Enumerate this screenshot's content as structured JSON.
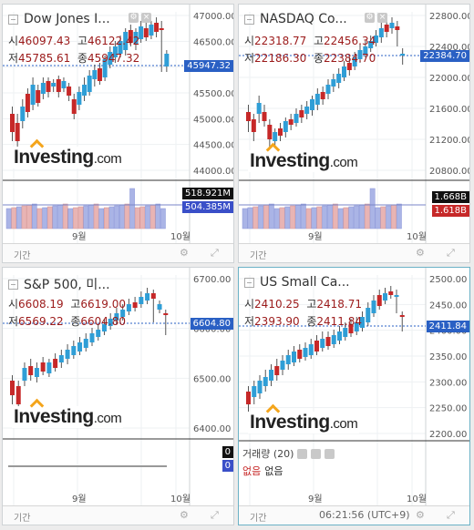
{
  "colors": {
    "up": "#2f9ed6",
    "down": "#c62828",
    "price_tag": "#2a60c4",
    "footer_text": "#888888"
  },
  "panels": [
    {
      "id": "dow",
      "title": "Dow Jones I...",
      "ohlc": {
        "open_label": "시",
        "open": "46097.43",
        "high_label": "고",
        "high": "46122.42",
        "low_label": "저",
        "low": "45785.61",
        "close_label": "종",
        "close": "45947.32"
      },
      "price_tag": "45947.32",
      "y_ticks": [
        "47000.00",
        "46500.00",
        "46000.00",
        "45500.00",
        "45000.00",
        "44500.00",
        "44000.00"
      ],
      "volume": {
        "up_value": "518.921M",
        "down_value": "504.385M"
      },
      "x_labels": [
        "9월",
        "10월"
      ],
      "footer": {
        "period_label": "기간"
      }
    },
    {
      "id": "nasdaq",
      "title": "NASDAQ Co...",
      "ohlc": {
        "open_label": "시",
        "open": "22318.77",
        "high_label": "고",
        "high": "22456.34",
        "low_label": "저",
        "low": "22186.30",
        "close_label": "종",
        "close": "22384.70"
      },
      "price_tag": "22384.70",
      "y_ticks": [
        "22800.00",
        "22400.00",
        "22000.00",
        "21600.00",
        "21200.00",
        "20800.00"
      ],
      "volume": {
        "up_value": "1.668B",
        "down_value": "1.618B"
      },
      "x_labels": [
        "9월",
        "10월"
      ],
      "footer": {
        "period_label": "기간"
      }
    },
    {
      "id": "sp500",
      "title": "S&P 500, 미...",
      "ohlc": {
        "open_label": "시",
        "open": "6608.19",
        "high_label": "고",
        "high": "6619.00",
        "low_label": "저",
        "low": "6569.22",
        "close_label": "종",
        "close": "6604.80"
      },
      "price_tag": "6604.80",
      "y_ticks": [
        "6700.00",
        "6600.00",
        "6500.00",
        "6400.00"
      ],
      "volume": {
        "up_value": "0",
        "down_value": "0"
      },
      "x_labels": [
        "9월",
        "10월"
      ],
      "footer": {
        "period_label": "기간"
      }
    },
    {
      "id": "russell",
      "title": "US Small Ca...",
      "ohlc": {
        "open_label": "시",
        "open": "2410.25",
        "high_label": "고",
        "high": "2418.71",
        "low_label": "저",
        "low": "2393.90",
        "close_label": "종",
        "close": "2411.84"
      },
      "price_tag": "2411.84",
      "y_ticks": [
        "2500.00",
        "2450.00",
        "2400.00",
        "2350.00",
        "2300.00",
        "2250.00",
        "2200.00"
      ],
      "volume_header": {
        "label": "거래량 (20)",
        "value1": "없음",
        "value2": "없음"
      },
      "x_labels": [
        "9월",
        "10월"
      ],
      "footer": {
        "period_label": "기간",
        "time": "06:21:56 (UTC+9)"
      }
    }
  ],
  "brand": {
    "logo_text": "Investing",
    "logo_suffix": ".com"
  }
}
